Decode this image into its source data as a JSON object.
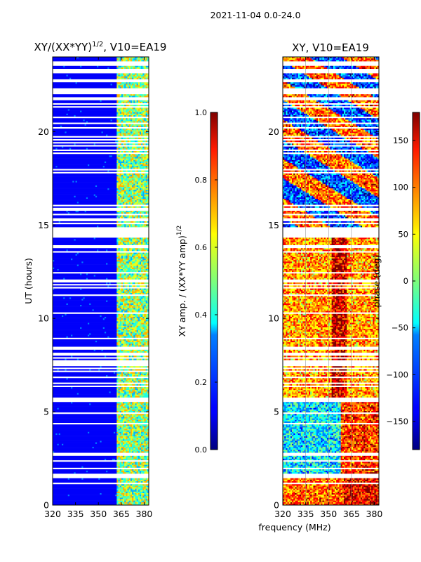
{
  "figure": {
    "suptitle": "2021-11-04 0.0-24.0",
    "xlabel": "frequency (MHz)"
  },
  "chart_data": [
    {
      "type": "heatmap",
      "title": "XY/(XX*YY)^1/2, V10=EA19",
      "title_main": "XY/(XX*YY)",
      "title_sup": "1/2",
      "title_tail": ", V10=EA19",
      "xlabel": "frequency (MHz)",
      "ylabel": "UT (hours)",
      "xlim": [
        320,
        383
      ],
      "ylim": [
        0,
        24
      ],
      "xticks": [
        320,
        335,
        350,
        365,
        380
      ],
      "yticks": [
        0,
        5,
        10,
        15,
        20
      ],
      "colorbar": {
        "label": "XY amp. / (XX*YY amp)^1/2",
        "label_main": "XY amp. / (XX*YY amp)",
        "label_sup": "1/2",
        "range": [
          0.0,
          1.0
        ],
        "ticks": [
          "0.0",
          "0.2",
          "0.4",
          "0.6",
          "0.8",
          "1.0"
        ],
        "colormap": "jet"
      }
    },
    {
      "type": "heatmap",
      "title": "XY, V10=EA19",
      "xlabel": "frequency (MHz)",
      "ylabel": "",
      "xlim": [
        320,
        383
      ],
      "ylim": [
        0,
        24
      ],
      "xticks": [
        320,
        335,
        350,
        365,
        380
      ],
      "yticks": [
        0,
        5,
        10,
        15,
        20
      ],
      "colorbar": {
        "label": "phase (deg)",
        "range": [
          -180,
          180
        ],
        "ticks": [
          "150",
          "100",
          "50",
          "0",
          "−50",
          "−100",
          "−150"
        ],
        "colormap": "jet"
      }
    }
  ]
}
